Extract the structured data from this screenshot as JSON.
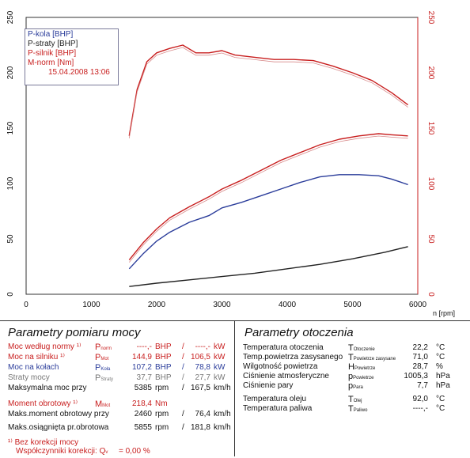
{
  "chart_data": {
    "type": "line",
    "xlabel": "n [rpm]",
    "xlim": [
      0,
      6000
    ],
    "xticks": [
      0,
      1000,
      2000,
      3000,
      4000,
      5000,
      6000
    ],
    "ylim": [
      0,
      250
    ],
    "yticks": [
      0,
      50,
      100,
      150,
      200,
      250
    ],
    "right_ylim": [
      0,
      250
    ],
    "right_yticks": [
      0,
      50,
      100,
      150,
      200,
      250
    ],
    "grid": true,
    "legend_position": "top-left",
    "legend_date": "15.04.2008 13:06",
    "series": [
      {
        "name": "P-kola [BHP]",
        "color": "#2a3c9a",
        "x": [
          1580,
          1800,
          2000,
          2200,
          2500,
          2800,
          3000,
          3300,
          3600,
          3900,
          4200,
          4500,
          4800,
          5100,
          5400,
          5600,
          5850
        ],
        "y": [
          23,
          37,
          48,
          56,
          65,
          71,
          78,
          83,
          89,
          95,
          101,
          106,
          108,
          108,
          107,
          104,
          99
        ]
      },
      {
        "name": "P-straty [BHP]",
        "color": "#222222",
        "x": [
          1580,
          2000,
          2500,
          3000,
          3500,
          4000,
          4500,
          5000,
          5500,
          5850
        ],
        "y": [
          7,
          10,
          13,
          16,
          19,
          23,
          27,
          32,
          38,
          43
        ]
      },
      {
        "name": "P-silnik [BHP]",
        "color": "#c81e1e",
        "x": [
          1580,
          1800,
          2000,
          2200,
          2500,
          2800,
          3000,
          3300,
          3600,
          3900,
          4200,
          4500,
          4800,
          5100,
          5400,
          5600,
          5850
        ],
        "y": [
          31,
          47,
          59,
          69,
          79,
          88,
          95,
          103,
          112,
          121,
          128,
          135,
          140,
          143,
          145,
          144,
          143
        ]
      },
      {
        "name": "M-norm [Nm]",
        "color": "#c81e1e",
        "x": [
          1580,
          1700,
          1850,
          2000,
          2200,
          2400,
          2600,
          2800,
          3000,
          3200,
          3500,
          3800,
          4100,
          4400,
          4700,
          5000,
          5300,
          5600,
          5850
        ],
        "y": [
          143,
          185,
          210,
          218,
          222,
          225,
          218,
          218,
          220,
          216,
          214,
          212,
          212,
          211,
          206,
          200,
          193,
          182,
          171
        ]
      }
    ]
  },
  "left_panel": {
    "title": "Parametry pomiaru mocy",
    "rows": [
      {
        "label": "Moc według normy ¹⁾",
        "sym": "P",
        "sub": "norm",
        "v1": "----,-",
        "u1": "BHP",
        "sep": "/",
        "v2": "----,-",
        "u2": "kW",
        "color": "red"
      },
      {
        "label": "Moc na silniku ¹⁾",
        "sym": "P",
        "sub": "Mot",
        "v1": "144,9",
        "u1": "BHP",
        "sep": "/",
        "v2": "106,5",
        "u2": "kW",
        "color": "red"
      },
      {
        "label": "Moc na kołach",
        "sym": "P",
        "sub": "Koła",
        "v1": "107,2",
        "u1": "BHP",
        "sep": "/",
        "v2": "78,8",
        "u2": "kW",
        "color": "blue"
      },
      {
        "label": "Straty mocy",
        "sym": "P",
        "sub": "Straty",
        "v1": "37,7",
        "u1": "BHP",
        "sep": "/",
        "v2": "27,7",
        "u2": "kW",
        "color": "gray"
      },
      {
        "label": "Maksymalna moc przy",
        "sym": "",
        "sub": "",
        "v1": "5385",
        "u1": "rpm",
        "sep": "/",
        "v2": "167,5",
        "u2": "km/h",
        "color": "blk"
      },
      {
        "label": "Moment obrotowy ¹⁾",
        "sym": "M",
        "sub": "Mot",
        "v1": "218,4",
        "u1": "Nm",
        "sep": "",
        "v2": "",
        "u2": "",
        "color": "red"
      },
      {
        "label": "Maks.moment obrotowy przy",
        "sym": "",
        "sub": "",
        "v1": "2460",
        "u1": "rpm",
        "sep": "/",
        "v2": "76,4",
        "u2": "km/h",
        "color": "blk"
      },
      {
        "label": "Maks.osiągnięta pr.obrotowa",
        "sym": "",
        "sub": "",
        "v1": "5855",
        "u1": "rpm",
        "sep": "/",
        "v2": "181,8",
        "u2": "km/h",
        "color": "blk"
      }
    ],
    "footnote1": "¹⁾ Bez korekcji mocy",
    "footnote2_label": "Współczynniki korekcji: Q",
    "footnote2_sub": "v",
    "footnote2_value": "= 0,00 %"
  },
  "right_panel": {
    "title": "Parametry otoczenia",
    "rows": [
      {
        "label": "Temperatura otoczenia",
        "sym": "T",
        "sub": "Otoczenie",
        "value": "22,2",
        "unit": "°C"
      },
      {
        "label": "Temp.powietrza zasysanego",
        "sym": "T",
        "sub": "Powietrze zasysane",
        "value": "71,0",
        "unit": "°C"
      },
      {
        "label": "Wilgotność powietrza",
        "sym": "H",
        "sub": "Powietrze",
        "value": "28,7",
        "unit": "%"
      },
      {
        "label": "Ciśnienie atmosferyczne",
        "sym": "p",
        "sub": "Powietrze",
        "value": "1005,3",
        "unit": "hPa"
      },
      {
        "label": "Ciśnienie pary",
        "sym": "p",
        "sub": "Para",
        "value": "7,7",
        "unit": "hPa"
      },
      {
        "label": "Temperatura oleju",
        "sym": "T",
        "sub": "Olej",
        "value": "92,0",
        "unit": "°C"
      },
      {
        "label": "Temperatura paliwa",
        "sym": "T",
        "sub": "Paliwo",
        "value": "----,-",
        "unit": "°C"
      }
    ]
  }
}
